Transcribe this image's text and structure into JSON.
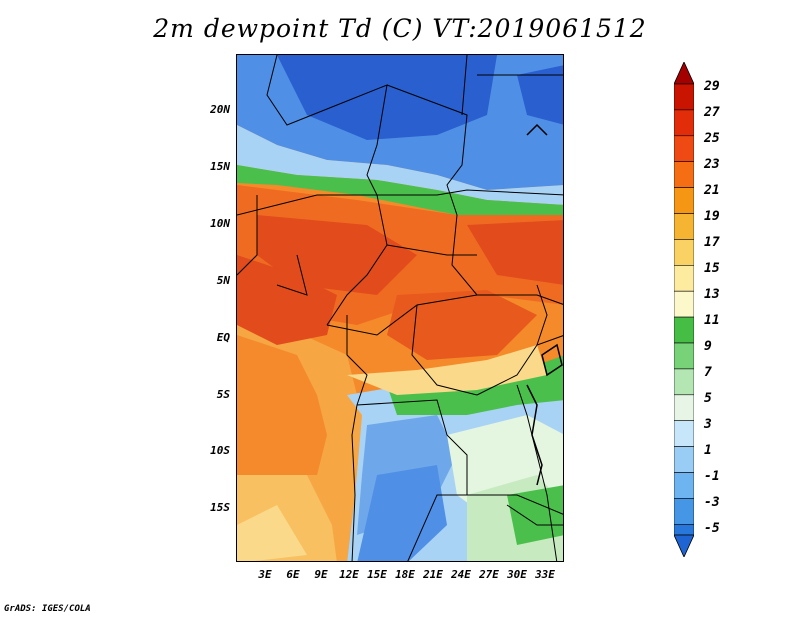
{
  "title": "2m dewpoint Td (C) VT:2019061512",
  "credit": "GrADS: IGES/COLA",
  "lat_labels": [
    "20N",
    "15N",
    "10N",
    "5N",
    "EQ",
    "5S",
    "10S",
    "15S"
  ],
  "lon_labels": [
    "3E",
    "6E",
    "9E",
    "12E",
    "15E",
    "18E",
    "21E",
    "24E",
    "27E",
    "30E",
    "33E"
  ],
  "colorbar": {
    "labels": [
      "29",
      "27",
      "25",
      "23",
      "21",
      "19",
      "17",
      "15",
      "13",
      "11",
      "9",
      "7",
      "5",
      "3",
      "1",
      "-1",
      "-3",
      "-5"
    ],
    "colors_top_to_bottom": [
      "#a50000",
      "#c81400",
      "#e12d0a",
      "#f04a14",
      "#f56e14",
      "#f59614",
      "#f5b432",
      "#fad264",
      "#fdeba0",
      "#fdf7cc",
      "#46be46",
      "#78d278",
      "#b4e6b4",
      "#e6f5e6",
      "#c8e6fa",
      "#9acdf5",
      "#6eb4f0",
      "#4696e6",
      "#2878dc",
      "#1e64d2"
    ]
  },
  "colors": {
    "deep_blue": "#2a5fcf",
    "mid_blue": "#4f8fe6",
    "light_blue": "#a9d3f5",
    "pale_green": "#e4f5e0",
    "green": "#4bbf4b",
    "light_orange": "#f7b24a",
    "orange": "#f47d1f",
    "red_orange": "#e7491b"
  }
}
